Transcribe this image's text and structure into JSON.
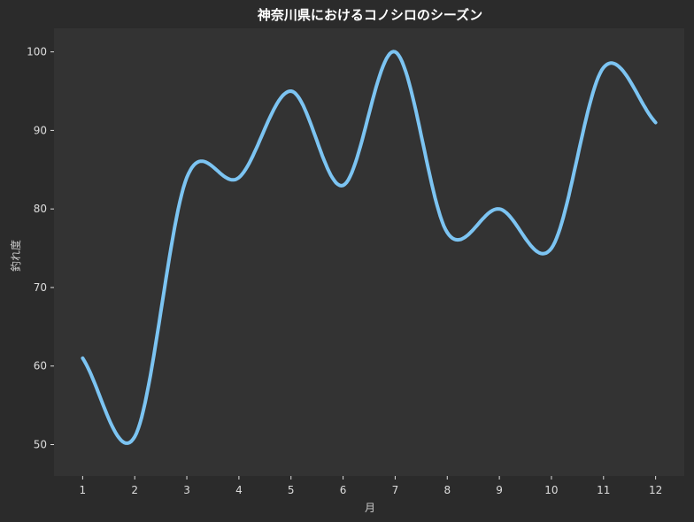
{
  "chart_data": {
    "type": "line",
    "title": "神奈川県におけるコノシロのシーズン",
    "xlabel": "月",
    "ylabel": "釣れ度",
    "x": [
      1,
      2,
      3,
      4,
      5,
      6,
      7,
      8,
      9,
      10,
      11,
      12
    ],
    "series": [
      {
        "values": [
          61,
          51,
          84,
          84,
          95,
          83,
          100,
          77,
          80,
          75,
          98,
          91
        ]
      }
    ],
    "xticks": [
      "1",
      "2",
      "3",
      "4",
      "5",
      "6",
      "7",
      "8",
      "9",
      "10",
      "11",
      "12"
    ],
    "yticks": [
      "50",
      "60",
      "70",
      "80",
      "90",
      "100"
    ],
    "xlim": [
      0.45,
      12.55
    ],
    "ylim": [
      46,
      103
    ],
    "grid": false,
    "colors": {
      "figure_bg": "#2b2b2b",
      "plot_bg": "#333333",
      "line": "#7cc4f2"
    }
  }
}
